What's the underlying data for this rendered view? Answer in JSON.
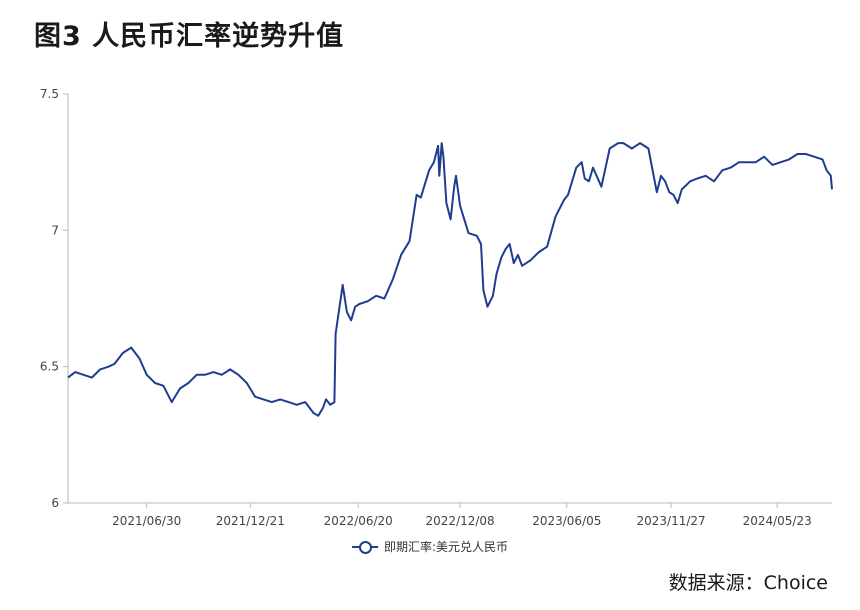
{
  "figure_title": "图3  人民币汇率逆势升值",
  "source_text": "数据来源：Choice",
  "chart_data": {
    "type": "line",
    "title": "",
    "xlabel": "",
    "ylabel": "",
    "ylim": [
      6,
      7.5
    ],
    "yticks": [
      6,
      6.5,
      7,
      7.5
    ],
    "ytick_labels": [
      "6",
      "6.5",
      "7",
      "7.5"
    ],
    "xlim": [
      "2021-02-18",
      "2024-08-23"
    ],
    "xticks": [
      "2021-06-30",
      "2021-12-21",
      "2022-06-20",
      "2022-12-08",
      "2023-06-05",
      "2023-11-27",
      "2024-05-23"
    ],
    "xtick_labels": [
      "2021/06/30",
      "2021/12/21",
      "2022/06/20",
      "2022/12/08",
      "2023/06/05",
      "2023/11/27",
      "2024/05/23"
    ],
    "grid": false,
    "legend_position": "bottom",
    "color": "#1f3d8f",
    "series": [
      {
        "name": "即期汇率:美元兑人民币",
        "x": [
          "2021-02-18",
          "2021-03-02",
          "2021-03-16",
          "2021-03-30",
          "2021-04-13",
          "2021-04-27",
          "2021-05-07",
          "2021-05-21",
          "2021-06-04",
          "2021-06-18",
          "2021-06-30",
          "2021-07-14",
          "2021-07-28",
          "2021-08-11",
          "2021-08-25",
          "2021-09-08",
          "2021-09-22",
          "2021-10-06",
          "2021-10-20",
          "2021-11-03",
          "2021-11-17",
          "2021-12-01",
          "2021-12-15",
          "2021-12-29",
          "2022-01-12",
          "2022-01-26",
          "2022-02-09",
          "2022-02-23",
          "2022-03-09",
          "2022-03-23",
          "2022-04-06",
          "2022-04-14",
          "2022-04-22",
          "2022-04-27",
          "2022-05-04",
          "2022-05-11",
          "2022-05-13",
          "2022-05-25",
          "2022-06-01",
          "2022-06-08",
          "2022-06-15",
          "2022-06-22",
          "2022-07-06",
          "2022-07-20",
          "2022-08-03",
          "2022-08-17",
          "2022-08-31",
          "2022-09-14",
          "2022-09-26",
          "2022-10-03",
          "2022-10-17",
          "2022-10-25",
          "2022-11-01",
          "2022-11-03",
          "2022-11-07",
          "2022-11-10",
          "2022-11-15",
          "2022-11-22",
          "2022-11-28",
          "2022-12-01",
          "2022-12-08",
          "2022-12-22",
          "2023-01-05",
          "2023-01-12",
          "2023-01-16",
          "2023-01-23",
          "2023-02-01",
          "2023-02-07",
          "2023-02-15",
          "2023-02-22",
          "2023-03-01",
          "2023-03-08",
          "2023-03-15",
          "2023-03-22",
          "2023-04-05",
          "2023-04-19",
          "2023-05-03",
          "2023-05-17",
          "2023-05-31",
          "2023-06-07",
          "2023-06-21",
          "2023-06-30",
          "2023-07-05",
          "2023-07-12",
          "2023-07-19",
          "2023-08-02",
          "2023-08-16",
          "2023-08-30",
          "2023-09-08",
          "2023-09-22",
          "2023-10-06",
          "2023-10-20",
          "2023-11-03",
          "2023-11-10",
          "2023-11-17",
          "2023-11-24",
          "2023-12-01",
          "2023-12-08",
          "2023-12-15",
          "2023-12-29",
          "2024-01-10",
          "2024-01-24",
          "2024-02-07",
          "2024-02-21",
          "2024-03-06",
          "2024-03-20",
          "2024-04-03",
          "2024-04-17",
          "2024-05-01",
          "2024-05-15",
          "2024-05-29",
          "2024-06-12",
          "2024-06-26",
          "2024-07-10",
          "2024-07-24",
          "2024-08-07",
          "2024-08-14",
          "2024-08-21",
          "2024-08-23"
        ],
        "y": [
          6.46,
          6.48,
          6.47,
          6.46,
          6.49,
          6.5,
          6.51,
          6.55,
          6.57,
          6.53,
          6.47,
          6.44,
          6.43,
          6.37,
          6.42,
          6.44,
          6.47,
          6.47,
          6.48,
          6.47,
          6.49,
          6.47,
          6.44,
          6.39,
          6.38,
          6.37,
          6.38,
          6.37,
          6.36,
          6.37,
          6.33,
          6.32,
          6.35,
          6.38,
          6.36,
          6.37,
          6.62,
          6.8,
          6.7,
          6.67,
          6.72,
          6.73,
          6.74,
          6.76,
          6.75,
          6.82,
          6.91,
          6.96,
          7.13,
          7.12,
          7.22,
          7.25,
          7.31,
          7.2,
          7.32,
          7.27,
          7.1,
          7.04,
          7.16,
          7.2,
          7.09,
          6.99,
          6.98,
          6.95,
          6.78,
          6.72,
          6.76,
          6.84,
          6.9,
          6.93,
          6.95,
          6.88,
          6.91,
          6.87,
          6.89,
          6.92,
          6.94,
          7.05,
          7.11,
          7.13,
          7.23,
          7.25,
          7.19,
          7.18,
          7.23,
          7.16,
          7.3,
          7.32,
          7.32,
          7.3,
          7.32,
          7.3,
          7.14,
          7.2,
          7.18,
          7.14,
          7.13,
          7.1,
          7.15,
          7.18,
          7.19,
          7.2,
          7.18,
          7.22,
          7.23,
          7.25,
          7.25,
          7.25,
          7.27,
          7.24,
          7.25,
          7.26,
          7.28,
          7.28,
          7.27,
          7.26,
          7.22,
          7.2,
          7.15
        ]
      }
    ]
  }
}
